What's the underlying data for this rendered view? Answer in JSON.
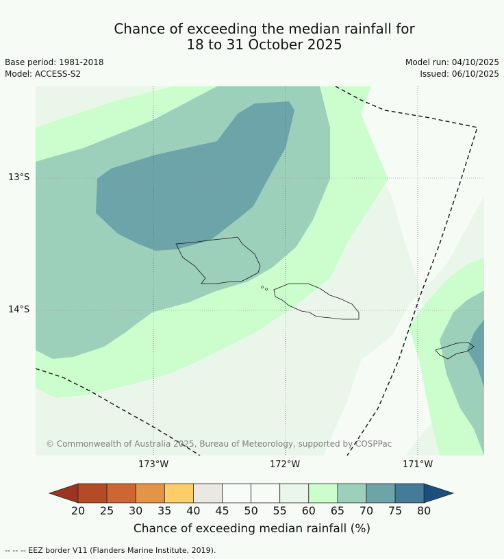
{
  "title_line1": "Chance of exceeding the median rainfall for",
  "title_line2": "18 to 31 October 2025",
  "base_period": "Base period: 1981-2018",
  "model": "Model: ACCESS-S2",
  "model_run": "Model run: 04/10/2025",
  "issued": "Issued: 06/10/2025",
  "lat_labels": [
    "13°S",
    "14°S"
  ],
  "lon_labels": [
    "173°W",
    "172°W",
    "171°W"
  ],
  "copyright": "© Commonwealth of Australia 2025, Bureau of Meteorology, supported by COSPPac",
  "colorbar": {
    "ticks": [
      "20",
      "25",
      "30",
      "35",
      "40",
      "45",
      "50",
      "55",
      "60",
      "65",
      "70",
      "75",
      "80"
    ],
    "colors": [
      "#9c3520",
      "#b44a26",
      "#cd6633",
      "#e49446",
      "#fecd69",
      "#ebe8e2",
      "#f7fcf8",
      "#f6fbf6",
      "#ebf6eb",
      "#cbfecc",
      "#9dd0bb",
      "#6ca4a9",
      "#437b98",
      "#1a4f80"
    ],
    "label": "Chance of exceeding median rainfall (%)"
  },
  "footnote": "--  --  -- EEZ border V11 (Flanders Marine Institute, 2019)."
}
